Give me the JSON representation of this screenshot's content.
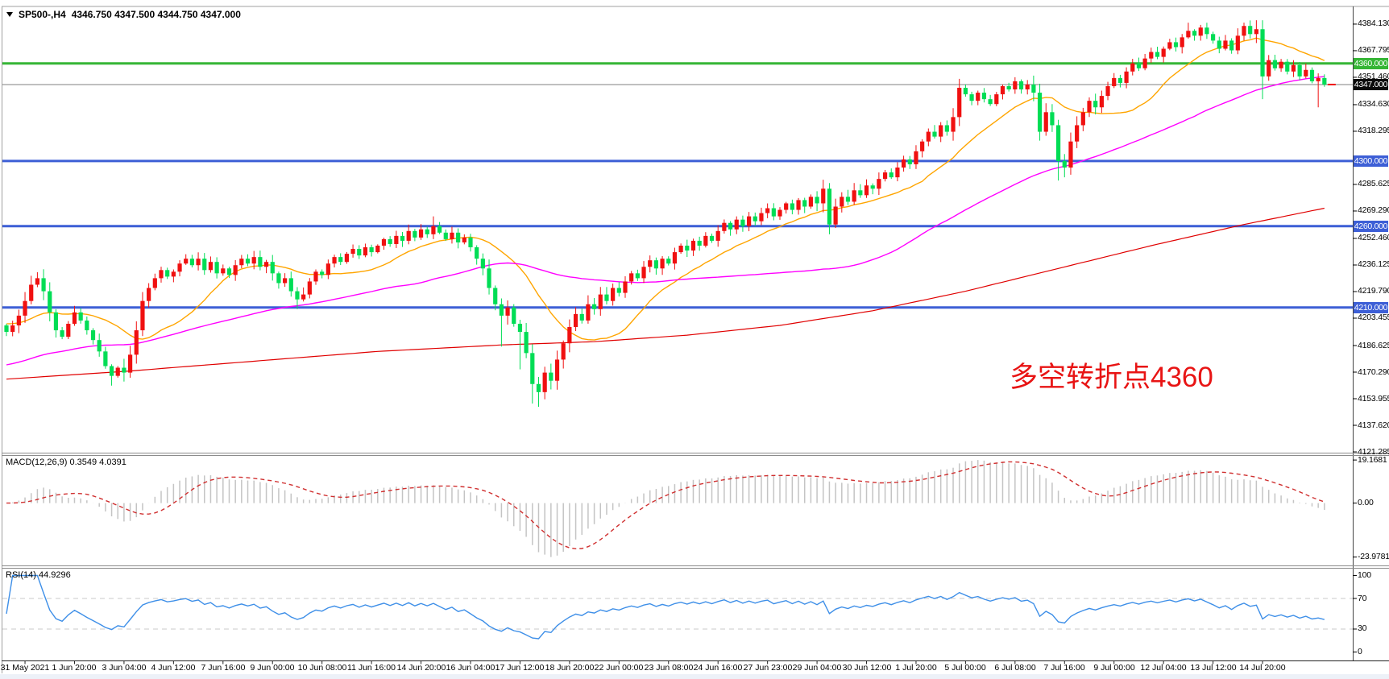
{
  "window": {
    "symbol_timeframe": "SP500-,H4",
    "ohlc_text": "4346.750 4347.500 4344.750 4347.000"
  },
  "annotation": {
    "text": "多空转折点4360",
    "color": "#e81414"
  },
  "colors": {
    "candle_up": "#f01010",
    "candle_down": "#00dd55",
    "ma_fast": "#ffa500",
    "ma_mid": "#ff00ff",
    "ma_slow": "#e00000",
    "hline_green": "#35b535",
    "hline_blue": "#3d5fd6",
    "price_line": "#808080",
    "macd_hist": "#c4c4c4",
    "macd_signal": "#d03030",
    "rsi_line": "#3e8fe8",
    "level_dash": "#c9c9c9",
    "axis_text": "#000000"
  },
  "price_axis": {
    "ylim": [
      4121.3,
      4393.5
    ],
    "ticks": [
      {
        "v": 4384.13,
        "t": "4384.130"
      },
      {
        "v": 4367.795,
        "t": "4367.795"
      },
      {
        "v": 4351.46,
        "t": "4351.460"
      },
      {
        "v": 4334.63,
        "t": "4334.630"
      },
      {
        "v": 4318.295,
        "t": "4318.295"
      },
      {
        "v": 4285.625,
        "t": "4285.625"
      },
      {
        "v": 4269.29,
        "t": "4269.290"
      },
      {
        "v": 4252.46,
        "t": "4252.460"
      },
      {
        "v": 4236.125,
        "t": "4236.125"
      },
      {
        "v": 4219.79,
        "t": "4219.790"
      },
      {
        "v": 4203.455,
        "t": "4203.455"
      },
      {
        "v": 4186.625,
        "t": "4186.625"
      },
      {
        "v": 4170.29,
        "t": "4170.290"
      },
      {
        "v": 4153.955,
        "t": "4153.955"
      },
      {
        "v": 4137.62,
        "t": "4137.620"
      },
      {
        "v": 4121.285,
        "t": "4121.285"
      }
    ],
    "badges": [
      {
        "v": 4360,
        "t": "4360.000",
        "bg": "#35b535"
      },
      {
        "v": 4347,
        "t": "4347.000",
        "bg": "#0a0a0a"
      },
      {
        "v": 4300,
        "t": "4300.000",
        "bg": "#3d5fd6"
      },
      {
        "v": 4260,
        "t": "4260.000",
        "bg": "#3d5fd6"
      },
      {
        "v": 4210,
        "t": "4210.000",
        "bg": "#3d5fd6"
      }
    ]
  },
  "hlines": [
    {
      "v": 4360,
      "color": "#35b535",
      "w": 3
    },
    {
      "v": 4347,
      "color": "#808080",
      "w": 1
    },
    {
      "v": 4300,
      "color": "#3d5fd6",
      "w": 3
    },
    {
      "v": 4260,
      "color": "#3d5fd6",
      "w": 3
    },
    {
      "v": 4210,
      "color": "#3d5fd6",
      "w": 3
    }
  ],
  "time_axis": {
    "labels": [
      "31 May 2021",
      "1 Jun 20:00",
      "3 Jun 04:00",
      "4 Jun 12:00",
      "7 Jun 16:00",
      "9 Jun 00:00",
      "10 Jun 08:00",
      "11 Jun 16:00",
      "14 Jun 20:00",
      "16 Jun 04:00",
      "17 Jun 12:00",
      "18 Jun 20:00",
      "22 Jun 00:00",
      "23 Jun 08:00",
      "24 Jun 16:00",
      "27 Jun 23:00",
      "29 Jun 04:00",
      "30 Jun 12:00",
      "1 Jul 20:00",
      "5 Jul 00:00",
      "6 Jul 08:00",
      "7 Jul 16:00",
      "9 Jul 00:00",
      "12 Jul 04:00",
      "13 Jul 12:00",
      "14 Jul 20:00"
    ],
    "first_candle_index": 3,
    "candles_per_label": 8
  },
  "chart_data": {
    "type": "candlestick",
    "title": "SP500- H4",
    "closes": [
      4195,
      4199,
      4205,
      4214,
      4224,
      4228,
      4220,
      4207,
      4196,
      4192,
      4200,
      4207,
      4202,
      4196,
      4190,
      4183,
      4174,
      4168,
      4173,
      4170,
      4181,
      4196,
      4214,
      4222,
      4228,
      4233,
      4229,
      4232,
      4237,
      4240,
      4236,
      4240,
      4233,
      4238,
      4231,
      4234,
      4230,
      4236,
      4240,
      4237,
      4241,
      4235,
      4238,
      4231,
      4225,
      4228,
      4220,
      4215,
      4218,
      4226,
      4232,
      4230,
      4237,
      4241,
      4238,
      4243,
      4246,
      4242,
      4247,
      4244,
      4248,
      4252,
      4249,
      4254,
      4251,
      4257,
      4253,
      4258,
      4255,
      4260,
      4256,
      4252,
      4256,
      4250,
      4253,
      4247,
      4240,
      4234,
      4222,
      4212,
      4205,
      4210,
      4200,
      4195,
      4182,
      4163,
      4158,
      4170,
      4165,
      4178,
      4188,
      4198,
      4206,
      4202,
      4212,
      4209,
      4218,
      4214,
      4222,
      4219,
      4226,
      4231,
      4228,
      4235,
      4239,
      4234,
      4240,
      4237,
      4244,
      4248,
      4245,
      4251,
      4248,
      4254,
      4251,
      4257,
      4262,
      4258,
      4264,
      4260,
      4266,
      4263,
      4268,
      4271,
      4266,
      4270,
      4274,
      4270,
      4276,
      4272,
      4278,
      4274,
      4283,
      4261,
      4272,
      4278,
      4275,
      4282,
      4279,
      4285,
      4283,
      4289,
      4293,
      4290,
      4296,
      4301,
      4298,
      4306,
      4312,
      4318,
      4315,
      4322,
      4318,
      4327,
      4345,
      4341,
      4337,
      4342,
      4338,
      4335,
      4341,
      4346,
      4344,
      4349,
      4344,
      4347,
      4342,
      4318,
      4330,
      4322,
      4300,
      4296,
      4312,
      4322,
      4330,
      4337,
      4333,
      4340,
      4346,
      4351,
      4348,
      4355,
      4360,
      4357,
      4363,
      4367,
      4364,
      4369,
      4373,
      4370,
      4376,
      4380,
      4377,
      4382,
      4378,
      4374,
      4369,
      4374,
      4368,
      4377,
      4383,
      4378,
      4381,
      4352,
      4362,
      4357,
      4361,
      4355,
      4359,
      4352,
      4356,
      4349,
      4351,
      4347
    ],
    "wick_overrides": {
      "17": {
        "low": 4162
      },
      "47": {
        "low": 4209
      },
      "69": {
        "high": 4266
      },
      "80": {
        "low": 4186
      },
      "83": {
        "low": 4172
      },
      "85": {
        "low": 4151
      },
      "86": {
        "low": 4149
      },
      "133": {
        "low": 4255
      },
      "170": {
        "low": 4288
      },
      "171": {
        "low": 4290
      },
      "191": {
        "high": 4385
      },
      "200": {
        "high": 4385
      },
      "203": {
        "low": 4338
      },
      "212": {
        "low": 4333
      }
    },
    "moving_averages": [
      {
        "name": "ma-fast",
        "color": "#ffa500",
        "period": 16,
        "seed_from": 4196,
        "seed_to": 4204
      },
      {
        "name": "ma-mid",
        "color": "#ff00ff",
        "period": 60,
        "seed_from": 4150,
        "seed_to": 4198
      }
    ],
    "ma_slow_anchors": [
      [
        0,
        4166
      ],
      [
        20,
        4171
      ],
      [
        40,
        4177
      ],
      [
        60,
        4183
      ],
      [
        80,
        4187
      ],
      [
        95,
        4189
      ],
      [
        110,
        4193
      ],
      [
        125,
        4199
      ],
      [
        140,
        4208
      ],
      [
        155,
        4220
      ],
      [
        170,
        4234
      ],
      [
        185,
        4248
      ],
      [
        200,
        4261
      ],
      [
        213,
        4271
      ]
    ],
    "macd": {
      "label": "MACD(12,26,9) 0.3549 4.0391",
      "fast": 12,
      "slow": 26,
      "signal": 9,
      "ylim": [
        -27,
        21
      ],
      "max_value": 19.1681,
      "min_value": -23.9781,
      "axis": [
        {
          "v": 19.1681,
          "t": "19.1681"
        },
        {
          "v": 0,
          "t": "0.00"
        },
        {
          "v": -23.9781,
          "t": "-23.9781"
        }
      ]
    },
    "rsi": {
      "label": "RSI(14) 44.9296",
      "period": 14,
      "ylim": [
        -9,
        109
      ],
      "levels": [
        70,
        30
      ],
      "axis": [
        {
          "v": 100,
          "t": "100"
        },
        {
          "v": 70,
          "t": "70"
        },
        {
          "v": 30,
          "t": "30"
        },
        {
          "v": 0,
          "t": "0"
        }
      ]
    }
  }
}
